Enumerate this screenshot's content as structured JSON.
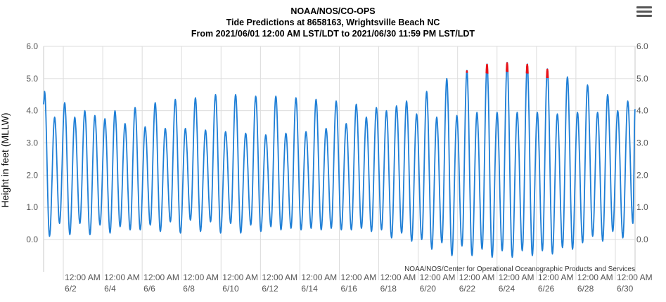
{
  "chart_data": {
    "type": "line",
    "title": "NOAA/NOS/CO-OPS",
    "subtitle_lines": [
      "Tide Predictions at 8658163, Wrightsville Beach NC",
      "From 2021/06/01 12:00 AM LST/LDT to 2021/06/30 11:59 PM LST/LDT"
    ],
    "ylabel": "Height in feet (MLLW)",
    "xlabel": "",
    "credit": "NOAA/NOS/Center for Operational Oceanographic Products and Services",
    "ylim": [
      -1.0,
      6.0
    ],
    "yticks": [
      "6.0",
      "5.0",
      "4.0",
      "3.0",
      "2.0",
      "1.0",
      "0.0"
    ],
    "ytick_values": [
      6,
      5,
      4,
      3,
      2,
      1,
      0
    ],
    "xticks": [
      {
        "time": "12:00 AM",
        "date": "6/2",
        "day": 1
      },
      {
        "time": "12:00 AM",
        "date": "6/4",
        "day": 3
      },
      {
        "time": "12:00 AM",
        "date": "6/6",
        "day": 5
      },
      {
        "time": "12:00 AM",
        "date": "6/8",
        "day": 7
      },
      {
        "time": "12:00 AM",
        "date": "6/10",
        "day": 9
      },
      {
        "time": "12:00 AM",
        "date": "6/12",
        "day": 11
      },
      {
        "time": "12:00 AM",
        "date": "6/14",
        "day": 13
      },
      {
        "time": "12:00 AM",
        "date": "6/16",
        "day": 15
      },
      {
        "time": "12:00 AM",
        "date": "6/18",
        "day": 17
      },
      {
        "time": "12:00 AM",
        "date": "6/20",
        "day": 19
      },
      {
        "time": "12:00 AM",
        "date": "6/22",
        "day": 21
      },
      {
        "time": "12:00 AM",
        "date": "6/24",
        "day": 23
      },
      {
        "time": "12:00 AM",
        "date": "6/26",
        "day": 25
      },
      {
        "time": "12:00 AM",
        "date": "6/28",
        "day": 27
      },
      {
        "time": "12:00 AM",
        "date": "6/30",
        "day": 29
      }
    ],
    "grid": true,
    "series": [
      {
        "color": "#1f7fd6",
        "extremes": [
          [
            0.05,
            4.6
          ],
          [
            0.3,
            0.1
          ],
          [
            0.56,
            3.8
          ],
          [
            0.81,
            0.5
          ],
          [
            1.07,
            4.25
          ],
          [
            1.33,
            0.15
          ],
          [
            1.58,
            3.8
          ],
          [
            1.84,
            0.5
          ],
          [
            2.09,
            4.0
          ],
          [
            2.35,
            0.15
          ],
          [
            2.6,
            3.85
          ],
          [
            2.86,
            0.45
          ],
          [
            3.11,
            3.75
          ],
          [
            3.37,
            0.2
          ],
          [
            3.62,
            4.0
          ],
          [
            3.88,
            0.4
          ],
          [
            4.13,
            3.6
          ],
          [
            4.39,
            0.3
          ],
          [
            4.64,
            4.1
          ],
          [
            4.9,
            0.3
          ],
          [
            5.15,
            3.5
          ],
          [
            5.41,
            0.45
          ],
          [
            5.66,
            4.25
          ],
          [
            5.92,
            0.25
          ],
          [
            6.17,
            3.45
          ],
          [
            6.43,
            0.55
          ],
          [
            6.68,
            4.35
          ],
          [
            6.94,
            0.2
          ],
          [
            7.19,
            3.45
          ],
          [
            7.45,
            0.6
          ],
          [
            7.7,
            4.4
          ],
          [
            7.96,
            0.25
          ],
          [
            8.21,
            3.4
          ],
          [
            8.47,
            0.55
          ],
          [
            8.72,
            4.5
          ],
          [
            8.98,
            0.2
          ],
          [
            9.23,
            3.35
          ],
          [
            9.49,
            0.5
          ],
          [
            9.74,
            4.5
          ],
          [
            10.0,
            0.2
          ],
          [
            10.25,
            3.3
          ],
          [
            10.51,
            0.45
          ],
          [
            10.76,
            4.45
          ],
          [
            11.02,
            0.25
          ],
          [
            11.27,
            3.25
          ],
          [
            11.53,
            0.4
          ],
          [
            11.78,
            4.45
          ],
          [
            12.04,
            0.3
          ],
          [
            12.29,
            3.3
          ],
          [
            12.55,
            0.35
          ],
          [
            12.8,
            4.4
          ],
          [
            13.06,
            0.3
          ],
          [
            13.31,
            3.35
          ],
          [
            13.57,
            0.35
          ],
          [
            13.82,
            4.35
          ],
          [
            14.08,
            0.3
          ],
          [
            14.33,
            3.45
          ],
          [
            14.59,
            0.35
          ],
          [
            14.84,
            4.3
          ],
          [
            15.1,
            0.3
          ],
          [
            15.35,
            3.6
          ],
          [
            15.61,
            0.3
          ],
          [
            15.86,
            4.2
          ],
          [
            16.12,
            0.35
          ],
          [
            16.37,
            3.8
          ],
          [
            16.63,
            0.25
          ],
          [
            16.88,
            4.1
          ],
          [
            17.14,
            0.3
          ],
          [
            17.39,
            4.0
          ],
          [
            17.65,
            0.05
          ],
          [
            17.9,
            4.15
          ],
          [
            18.16,
            0.2
          ],
          [
            18.41,
            4.3
          ],
          [
            18.67,
            -0.05
          ],
          [
            18.92,
            3.9
          ],
          [
            19.18,
            0.0
          ],
          [
            19.43,
            4.6
          ],
          [
            19.69,
            -0.3
          ],
          [
            19.94,
            3.8
          ],
          [
            20.2,
            -0.1
          ],
          [
            20.45,
            5.0
          ],
          [
            20.71,
            -0.5
          ],
          [
            20.96,
            3.85
          ],
          [
            21.22,
            -0.2
          ],
          [
            21.47,
            5.25
          ],
          [
            21.73,
            -0.5
          ],
          [
            21.98,
            3.95
          ],
          [
            22.24,
            -0.3
          ],
          [
            22.49,
            5.45
          ],
          [
            22.75,
            -0.55
          ],
          [
            23.0,
            3.95
          ],
          [
            23.26,
            -0.35
          ],
          [
            23.51,
            5.5
          ],
          [
            23.77,
            -0.55
          ],
          [
            24.02,
            3.95
          ],
          [
            24.28,
            -0.35
          ],
          [
            24.53,
            5.45
          ],
          [
            24.79,
            -0.5
          ],
          [
            25.04,
            3.95
          ],
          [
            25.3,
            -0.35
          ],
          [
            25.55,
            5.3
          ],
          [
            25.81,
            -0.45
          ],
          [
            26.06,
            3.9
          ],
          [
            26.32,
            -0.25
          ],
          [
            26.57,
            5.05
          ],
          [
            26.83,
            -0.3
          ],
          [
            27.08,
            3.95
          ],
          [
            27.34,
            -0.1
          ],
          [
            27.59,
            4.8
          ],
          [
            27.85,
            0.1
          ],
          [
            28.1,
            3.95
          ],
          [
            28.36,
            -0.05
          ],
          [
            28.61,
            4.5
          ],
          [
            28.87,
            0.25
          ],
          [
            29.12,
            4.0
          ],
          [
            29.38,
            0.05
          ],
          [
            29.63,
            4.3
          ],
          [
            29.89,
            0.5
          ],
          [
            30.0,
            4.05
          ]
        ],
        "flood_threshold": 5.0,
        "flood_color": "#e8141a"
      }
    ]
  }
}
